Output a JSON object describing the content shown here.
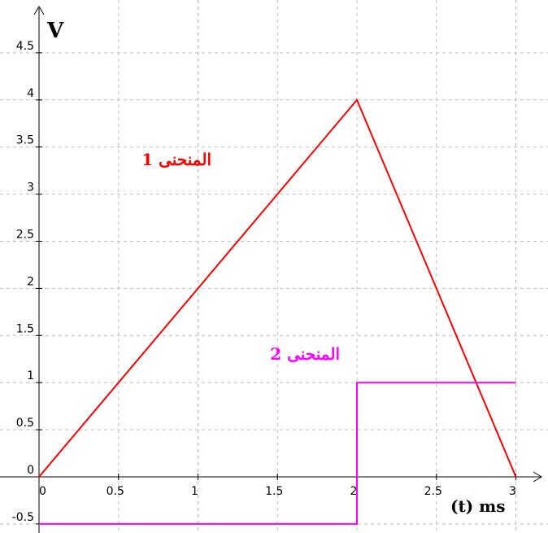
{
  "chart_data": {
    "type": "line",
    "y_axis_label": "V",
    "x_axis_label": "(t) ms",
    "xlim": [
      -0.05,
      3.1
    ],
    "ylim": [
      -0.65,
      5.0
    ],
    "x_ticks": [
      0,
      0.5,
      1,
      1.5,
      2,
      2.5,
      3
    ],
    "x_tick_labels": [
      "0",
      "0.5",
      "1",
      "1.5",
      "2",
      "2.5",
      "3"
    ],
    "y_ticks": [
      -0.5,
      0,
      0.5,
      1,
      1.5,
      2,
      2.5,
      3,
      3.5,
      4,
      4.5
    ],
    "y_tick_labels": [
      "-0.5",
      "0",
      "0.5",
      "1",
      "1.5",
      "2",
      "2.5",
      "3",
      "3.5",
      "4",
      "4.5"
    ],
    "grid": true,
    "series": [
      {
        "name": "المنحنى 1",
        "color": "#ff0000",
        "points": [
          [
            0,
            0
          ],
          [
            2,
            4
          ],
          [
            3,
            0
          ]
        ]
      },
      {
        "name": "المنحنى 2",
        "color": "#ff00ff",
        "points": [
          [
            0,
            -0.5
          ],
          [
            2,
            -0.5
          ],
          [
            2,
            1
          ],
          [
            3,
            1
          ]
        ]
      }
    ]
  }
}
